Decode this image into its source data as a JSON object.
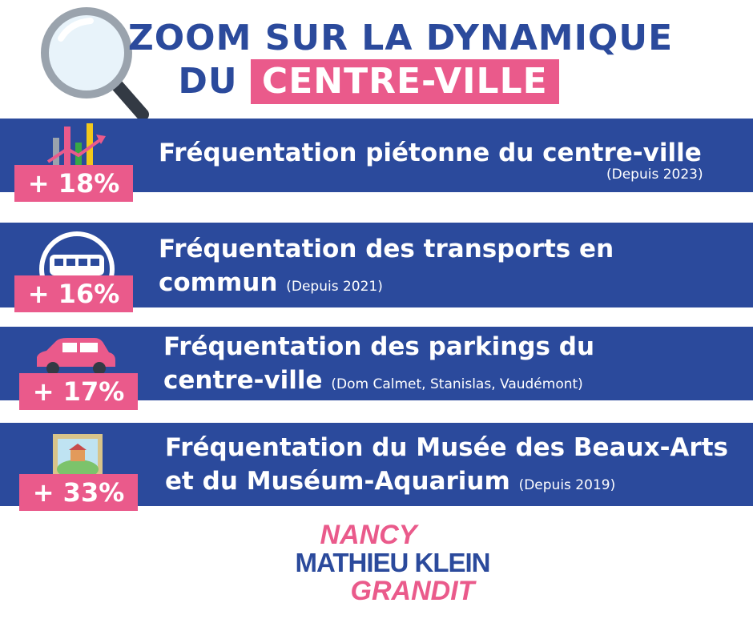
{
  "header": {
    "line1": "ZOOM SUR LA DYNAMIQUE",
    "line2_prefix": "DU",
    "line2_highlight": "CENTRE-VILLE"
  },
  "items": [
    {
      "title": "Fréquentation piétonne du centre-ville",
      "note": "(Depuis 2023)",
      "badge": "+ 18%",
      "icon": "bar-chart-icon"
    },
    {
      "title_line1": "Fréquentation des transports en",
      "title_line2": "commun",
      "note": "(Depuis 2021)",
      "badge": "+ 16%",
      "icon": "bus-icon"
    },
    {
      "title_line1": "Fréquentation des parkings du",
      "title_line2": "centre-ville",
      "note": "(Dom Calmet, Stanislas, Vaudémont)",
      "badge": "+ 17%",
      "icon": "car-icon"
    },
    {
      "title_line1": "Fréquentation du Musée des Beaux-Arts",
      "title_line2": "et du Muséum-Aquarium",
      "note": "(Depuis 2019)",
      "badge": "+ 33%",
      "icon": "painting-icon"
    }
  ],
  "logo": {
    "line1": "NANCY",
    "line2": "MATHIEU KLEIN",
    "line3": "GRANDIT"
  },
  "colors": {
    "blue": "#2b4a9c",
    "pink": "#ea5a8b",
    "white": "#ffffff"
  }
}
